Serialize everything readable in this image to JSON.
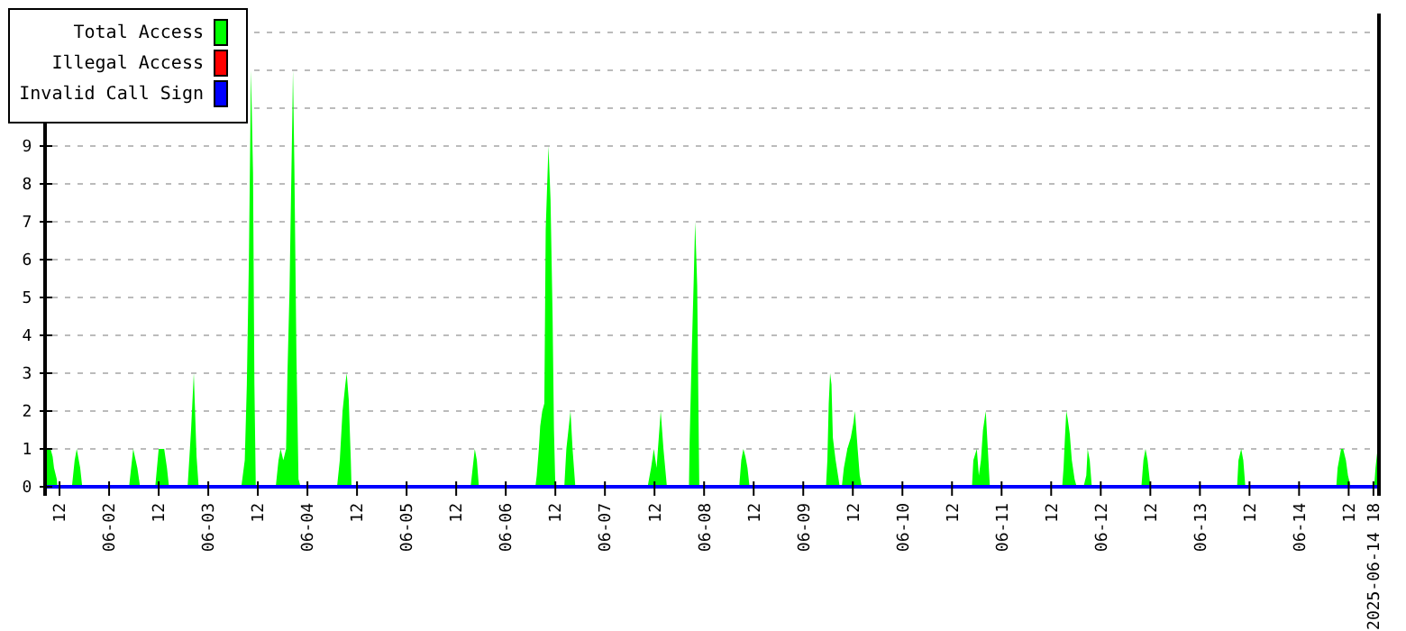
{
  "chart_data": {
    "type": "area",
    "xlim": [
      "2025-06-01T08:30",
      "2025-06-14T19:20"
    ],
    "xticks": [
      {
        "value": "2025-06-01T12:00",
        "label": "12"
      },
      {
        "value": "2025-06-02T00:00",
        "label": "06-02"
      },
      {
        "value": "2025-06-02T12:00",
        "label": "12"
      },
      {
        "value": "2025-06-03T00:00",
        "label": "06-03"
      },
      {
        "value": "2025-06-03T12:00",
        "label": "12"
      },
      {
        "value": "2025-06-04T00:00",
        "label": "06-04"
      },
      {
        "value": "2025-06-04T12:00",
        "label": "12"
      },
      {
        "value": "2025-06-05T00:00",
        "label": "06-05"
      },
      {
        "value": "2025-06-05T12:00",
        "label": "12"
      },
      {
        "value": "2025-06-06T00:00",
        "label": "06-06"
      },
      {
        "value": "2025-06-06T12:00",
        "label": "12"
      },
      {
        "value": "2025-06-07T00:00",
        "label": "06-07"
      },
      {
        "value": "2025-06-07T12:00",
        "label": "12"
      },
      {
        "value": "2025-06-08T00:00",
        "label": "06-08"
      },
      {
        "value": "2025-06-08T12:00",
        "label": "12"
      },
      {
        "value": "2025-06-09T00:00",
        "label": "06-09"
      },
      {
        "value": "2025-06-09T12:00",
        "label": "12"
      },
      {
        "value": "2025-06-10T00:00",
        "label": "06-10"
      },
      {
        "value": "2025-06-10T12:00",
        "label": "12"
      },
      {
        "value": "2025-06-11T00:00",
        "label": "06-11"
      },
      {
        "value": "2025-06-11T12:00",
        "label": "12"
      },
      {
        "value": "2025-06-12T00:00",
        "label": "06-12"
      },
      {
        "value": "2025-06-12T12:00",
        "label": "12"
      },
      {
        "value": "2025-06-13T00:00",
        "label": "06-13"
      },
      {
        "value": "2025-06-13T12:00",
        "label": "12"
      },
      {
        "value": "2025-06-14T00:00",
        "label": "06-14"
      },
      {
        "value": "2025-06-14T12:00",
        "label": "12"
      },
      {
        "value": "2025-06-14T18:00",
        "label": "2025-06-14 18"
      }
    ],
    "ylim": [
      0,
      12.5
    ],
    "yticks": [
      0,
      1,
      2,
      3,
      4,
      5,
      6,
      7,
      8,
      9,
      {
        "value": 10,
        "label": null
      },
      {
        "value": 11,
        "label": null
      },
      {
        "value": 12,
        "label": null
      }
    ],
    "grid": "y",
    "legend": "top left",
    "series": [
      {
        "name": "Total Access",
        "color": "#00ff00",
        "x": [
          "2025-06-01T08:30",
          "2025-06-01T09:50",
          "2025-06-01T10:20",
          "2025-06-01T10:40",
          "2025-06-01T11:20",
          "2025-06-01T11:30",
          "2025-06-01T15:00",
          "2025-06-01T15:40",
          "2025-06-01T16:10",
          "2025-06-01T16:30",
          "2025-06-01T17:00",
          "2025-06-01T17:30",
          "2025-06-02T04:50",
          "2025-06-02T05:50",
          "2025-06-02T06:50",
          "2025-06-02T07:30",
          "2025-06-02T11:10",
          "2025-06-02T12:00",
          "2025-06-02T13:20",
          "2025-06-02T14:00",
          "2025-06-02T14:30",
          "2025-06-02T19:00",
          "2025-06-02T19:50",
          "2025-06-02T20:30",
          "2025-06-02T21:10",
          "2025-06-02T21:40",
          "2025-06-03T08:00",
          "2025-06-03T08:50",
          "2025-06-03T09:20",
          "2025-06-03T09:50",
          "2025-06-03T10:10",
          "2025-06-03T10:20",
          "2025-06-03T10:50",
          "2025-06-03T11:10",
          "2025-06-03T11:30",
          "2025-06-03T16:20",
          "2025-06-03T17:00",
          "2025-06-03T17:30",
          "2025-06-03T18:10",
          "2025-06-03T18:50",
          "2025-06-03T19:10",
          "2025-06-03T19:40",
          "2025-06-03T20:00",
          "2025-06-03T20:20",
          "2025-06-03T20:30",
          "2025-06-03T20:50",
          "2025-06-03T21:20",
          "2025-06-03T21:50",
          "2025-06-03T22:20",
          "2025-06-04T07:10",
          "2025-06-04T07:50",
          "2025-06-04T08:30",
          "2025-06-04T09:10",
          "2025-06-04T09:30",
          "2025-06-04T10:00",
          "2025-06-04T10:30",
          "2025-06-04T10:40",
          "2025-06-05T15:30",
          "2025-06-05T16:30",
          "2025-06-05T17:00",
          "2025-06-05T17:30",
          "2025-06-06T07:10",
          "2025-06-06T07:30",
          "2025-06-06T08:00",
          "2025-06-06T08:20",
          "2025-06-06T08:50",
          "2025-06-06T09:20",
          "2025-06-06T09:40",
          "2025-06-06T10:20",
          "2025-06-06T10:50",
          "2025-06-06T11:20",
          "2025-06-06T11:40",
          "2025-06-06T12:00",
          "2025-06-06T14:10",
          "2025-06-06T14:40",
          "2025-06-06T15:40",
          "2025-06-06T16:10",
          "2025-06-06T16:50",
          "2025-06-07T10:20",
          "2025-06-07T11:10",
          "2025-06-07T11:50",
          "2025-06-07T12:30",
          "2025-06-07T13:30",
          "2025-06-07T14:10",
          "2025-06-07T15:00",
          "2025-06-07T20:20",
          "2025-06-07T20:30",
          "2025-06-07T21:00",
          "2025-06-07T21:30",
          "2025-06-07T21:50",
          "2025-06-07T22:10",
          "2025-06-07T22:20",
          "2025-06-07T22:40",
          "2025-06-07T22:50",
          "2025-06-08T08:30",
          "2025-06-08T09:00",
          "2025-06-08T09:30",
          "2025-06-08T10:00",
          "2025-06-08T10:30",
          "2025-06-08T11:00",
          "2025-06-09T05:30",
          "2025-06-09T05:50",
          "2025-06-09T06:10",
          "2025-06-09T06:30",
          "2025-06-09T06:50",
          "2025-06-09T07:10",
          "2025-06-09T07:50",
          "2025-06-09T08:50",
          "2025-06-09T09:20",
          "2025-06-09T09:50",
          "2025-06-09T10:40",
          "2025-06-09T11:30",
          "2025-06-09T12:10",
          "2025-06-09T12:30",
          "2025-06-09T13:10",
          "2025-06-09T13:40",
          "2025-06-09T14:10",
          "2025-06-10T16:50",
          "2025-06-10T17:10",
          "2025-06-10T18:00",
          "2025-06-10T18:30",
          "2025-06-10T19:00",
          "2025-06-10T19:30",
          "2025-06-10T20:10",
          "2025-06-10T20:40",
          "2025-06-10T21:10",
          "2025-06-11T14:40",
          "2025-06-11T15:00",
          "2025-06-11T15:20",
          "2025-06-11T15:40",
          "2025-06-11T16:00",
          "2025-06-11T16:30",
          "2025-06-11T17:00",
          "2025-06-11T17:40",
          "2025-06-11T18:10",
          "2025-06-11T19:50",
          "2025-06-11T20:30",
          "2025-06-11T20:50",
          "2025-06-11T21:20",
          "2025-06-11T21:50",
          "2025-06-12T09:50",
          "2025-06-12T10:20",
          "2025-06-12T10:50",
          "2025-06-12T11:20",
          "2025-06-12T11:50",
          "2025-06-12T12:00",
          "2025-06-13T09:00",
          "2025-06-13T09:20",
          "2025-06-13T10:00",
          "2025-06-13T10:30",
          "2025-06-13T11:00",
          "2025-06-14T09:00",
          "2025-06-14T09:20",
          "2025-06-14T10:10",
          "2025-06-14T10:40",
          "2025-06-14T11:20",
          "2025-06-14T11:50",
          "2025-06-14T12:30",
          "2025-06-14T18:10",
          "2025-06-14T18:30",
          "2025-06-14T19:00",
          "2025-06-14T19:20"
        ],
        "values": [
          1,
          1,
          0.8,
          0.5,
          0.2,
          0,
          0,
          0.7,
          1,
          0.8,
          0.5,
          0,
          0,
          1,
          0.5,
          0,
          0,
          1,
          1,
          0.5,
          0,
          0,
          1.5,
          3,
          0.8,
          0,
          0,
          0.7,
          2.7,
          6,
          9.3,
          11,
          8.3,
          2.7,
          0,
          0,
          0.7,
          1,
          0.7,
          1,
          3,
          5.2,
          7.5,
          9.7,
          11,
          8.5,
          3.5,
          0.2,
          0,
          0,
          0.7,
          2,
          2.7,
          3,
          2.3,
          0.7,
          0,
          0,
          1,
          0.7,
          0,
          0,
          0.3,
          1,
          1.6,
          2,
          2.2,
          6.8,
          9,
          7.6,
          4.5,
          1.5,
          0,
          0,
          1,
          2,
          1,
          0,
          0,
          0.5,
          1,
          0.5,
          2,
          1,
          0,
          0,
          1.2,
          3.5,
          5.5,
          7,
          5.9,
          5.3,
          1.7,
          0,
          0,
          0.7,
          1,
          0.8,
          0.5,
          0,
          0,
          0.7,
          2.2,
          3,
          2.7,
          1.3,
          0.7,
          0,
          0,
          0.5,
          1,
          1.3,
          1.7,
          2,
          1,
          0.3,
          0,
          0,
          0.7,
          1,
          0.3,
          0.7,
          1.5,
          2,
          1,
          0,
          0,
          0.5,
          1.3,
          2,
          1.8,
          1.4,
          0.7,
          0.2,
          0,
          0,
          0.3,
          1,
          0.7,
          0,
          0,
          0.7,
          1,
          0.7,
          0.2,
          0,
          0,
          0.7,
          1,
          0.7,
          0,
          0,
          0.5,
          1,
          1,
          0.7,
          0.3,
          0,
          0,
          0.5,
          1,
          1
        ]
      },
      {
        "name": "Illegal Access",
        "color": "#ff0000",
        "type": "line"
      },
      {
        "name": "Invalid Call Sign",
        "color": "#0000ff",
        "type": "line",
        "x": [
          "2025-06-01T08:30",
          "2025-06-14T19:20"
        ],
        "values": [
          0,
          0
        ]
      }
    ]
  }
}
